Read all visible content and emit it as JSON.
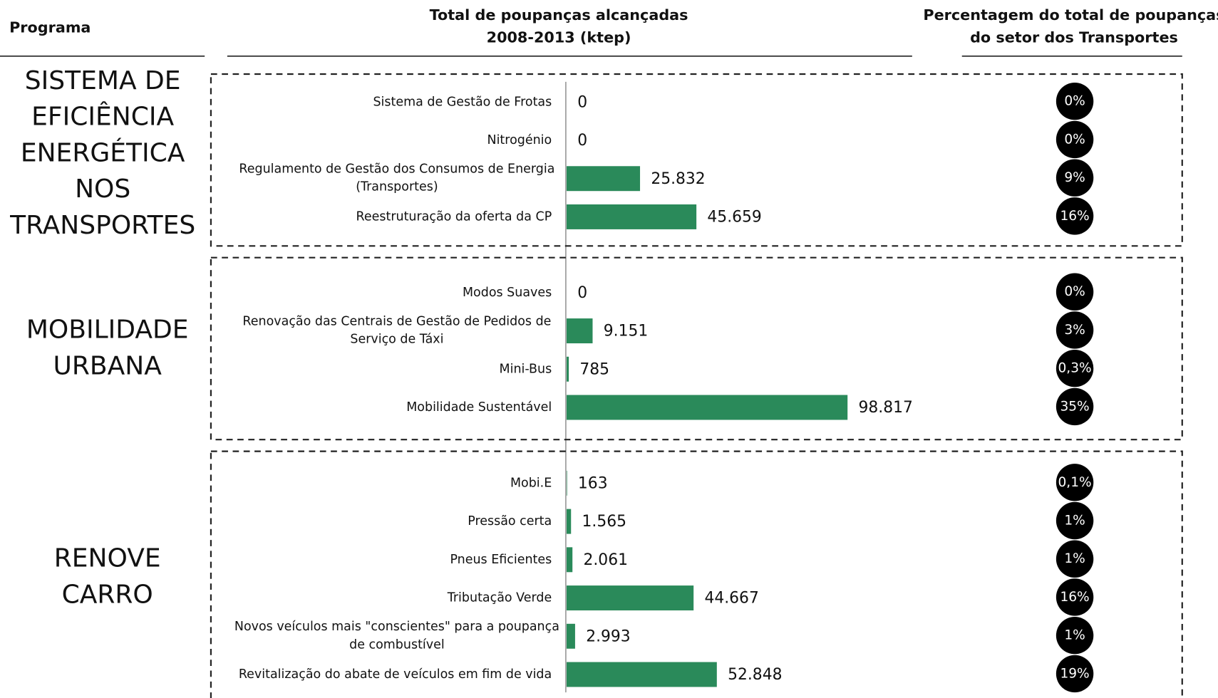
{
  "chart_data": {
    "type": "bar",
    "program_header": "Programa",
    "value_title": [
      "Total de poupanças alcançadas",
      "2008-2013 (ktep)"
    ],
    "share_title": [
      "Percentagem do total de poupanças",
      "do setor dos Transportes"
    ],
    "color": "#2a8a5a",
    "groups": [
      {
        "name": [
          "SISTEMA DE",
          "EFICIÊNCIA",
          "ENERGÉTICA",
          "NOS",
          "TRANSPORTES"
        ],
        "categories": [
          [
            "Sistema de Gestão de Frotas"
          ],
          [
            "Nitrogénio"
          ],
          [
            "Regulamento de Gestão dos Consumos de Energia",
            "(Transportes)"
          ],
          [
            "Reestruturação da oferta da CP"
          ]
        ],
        "values": [
          0,
          0,
          25832,
          45659
        ],
        "value_labels": [
          "0",
          "0",
          "25.832",
          "45.659"
        ],
        "shares": [
          0,
          0,
          9,
          16
        ],
        "share_labels": [
          "0%",
          "0%",
          "9%",
          "16%"
        ]
      },
      {
        "name": [
          "MOBILIDADE",
          "URBANA"
        ],
        "categories": [
          [
            "Modos Suaves"
          ],
          [
            "Renovação das Centrais de Gestão de Pedidos de",
            "Serviço de Táxi"
          ],
          [
            "Mini-Bus"
          ],
          [
            "Mobilidade Sustentável"
          ]
        ],
        "values": [
          0,
          9151,
          785,
          98817
        ],
        "value_labels": [
          "0",
          "9.151",
          "785",
          "98.817"
        ],
        "shares": [
          0,
          3,
          0.3,
          35
        ],
        "share_labels": [
          "0%",
          "3%",
          "0,3%",
          "35%"
        ]
      },
      {
        "name": [
          "RENOVE",
          "CARRO"
        ],
        "categories": [
          [
            "Mobi.E"
          ],
          [
            "Pressão certa"
          ],
          [
            "Pneus Eficientes"
          ],
          [
            "Tributação Verde"
          ],
          [
            "Novos veículos mais \"conscientes\" para a poupança",
            "de combustível"
          ],
          [
            "Revitalização do abate de veículos em fim de vida"
          ]
        ],
        "values": [
          163,
          1565,
          2061,
          44667,
          2993,
          52848
        ],
        "value_labels": [
          "163",
          "1.565",
          "2.061",
          "44.667",
          "2.993",
          "52.848"
        ],
        "shares": [
          0.1,
          1,
          1,
          16,
          1,
          19
        ],
        "share_labels": [
          "0,1%",
          "1%",
          "1%",
          "16%",
          "1%",
          "19%"
        ]
      }
    ]
  }
}
